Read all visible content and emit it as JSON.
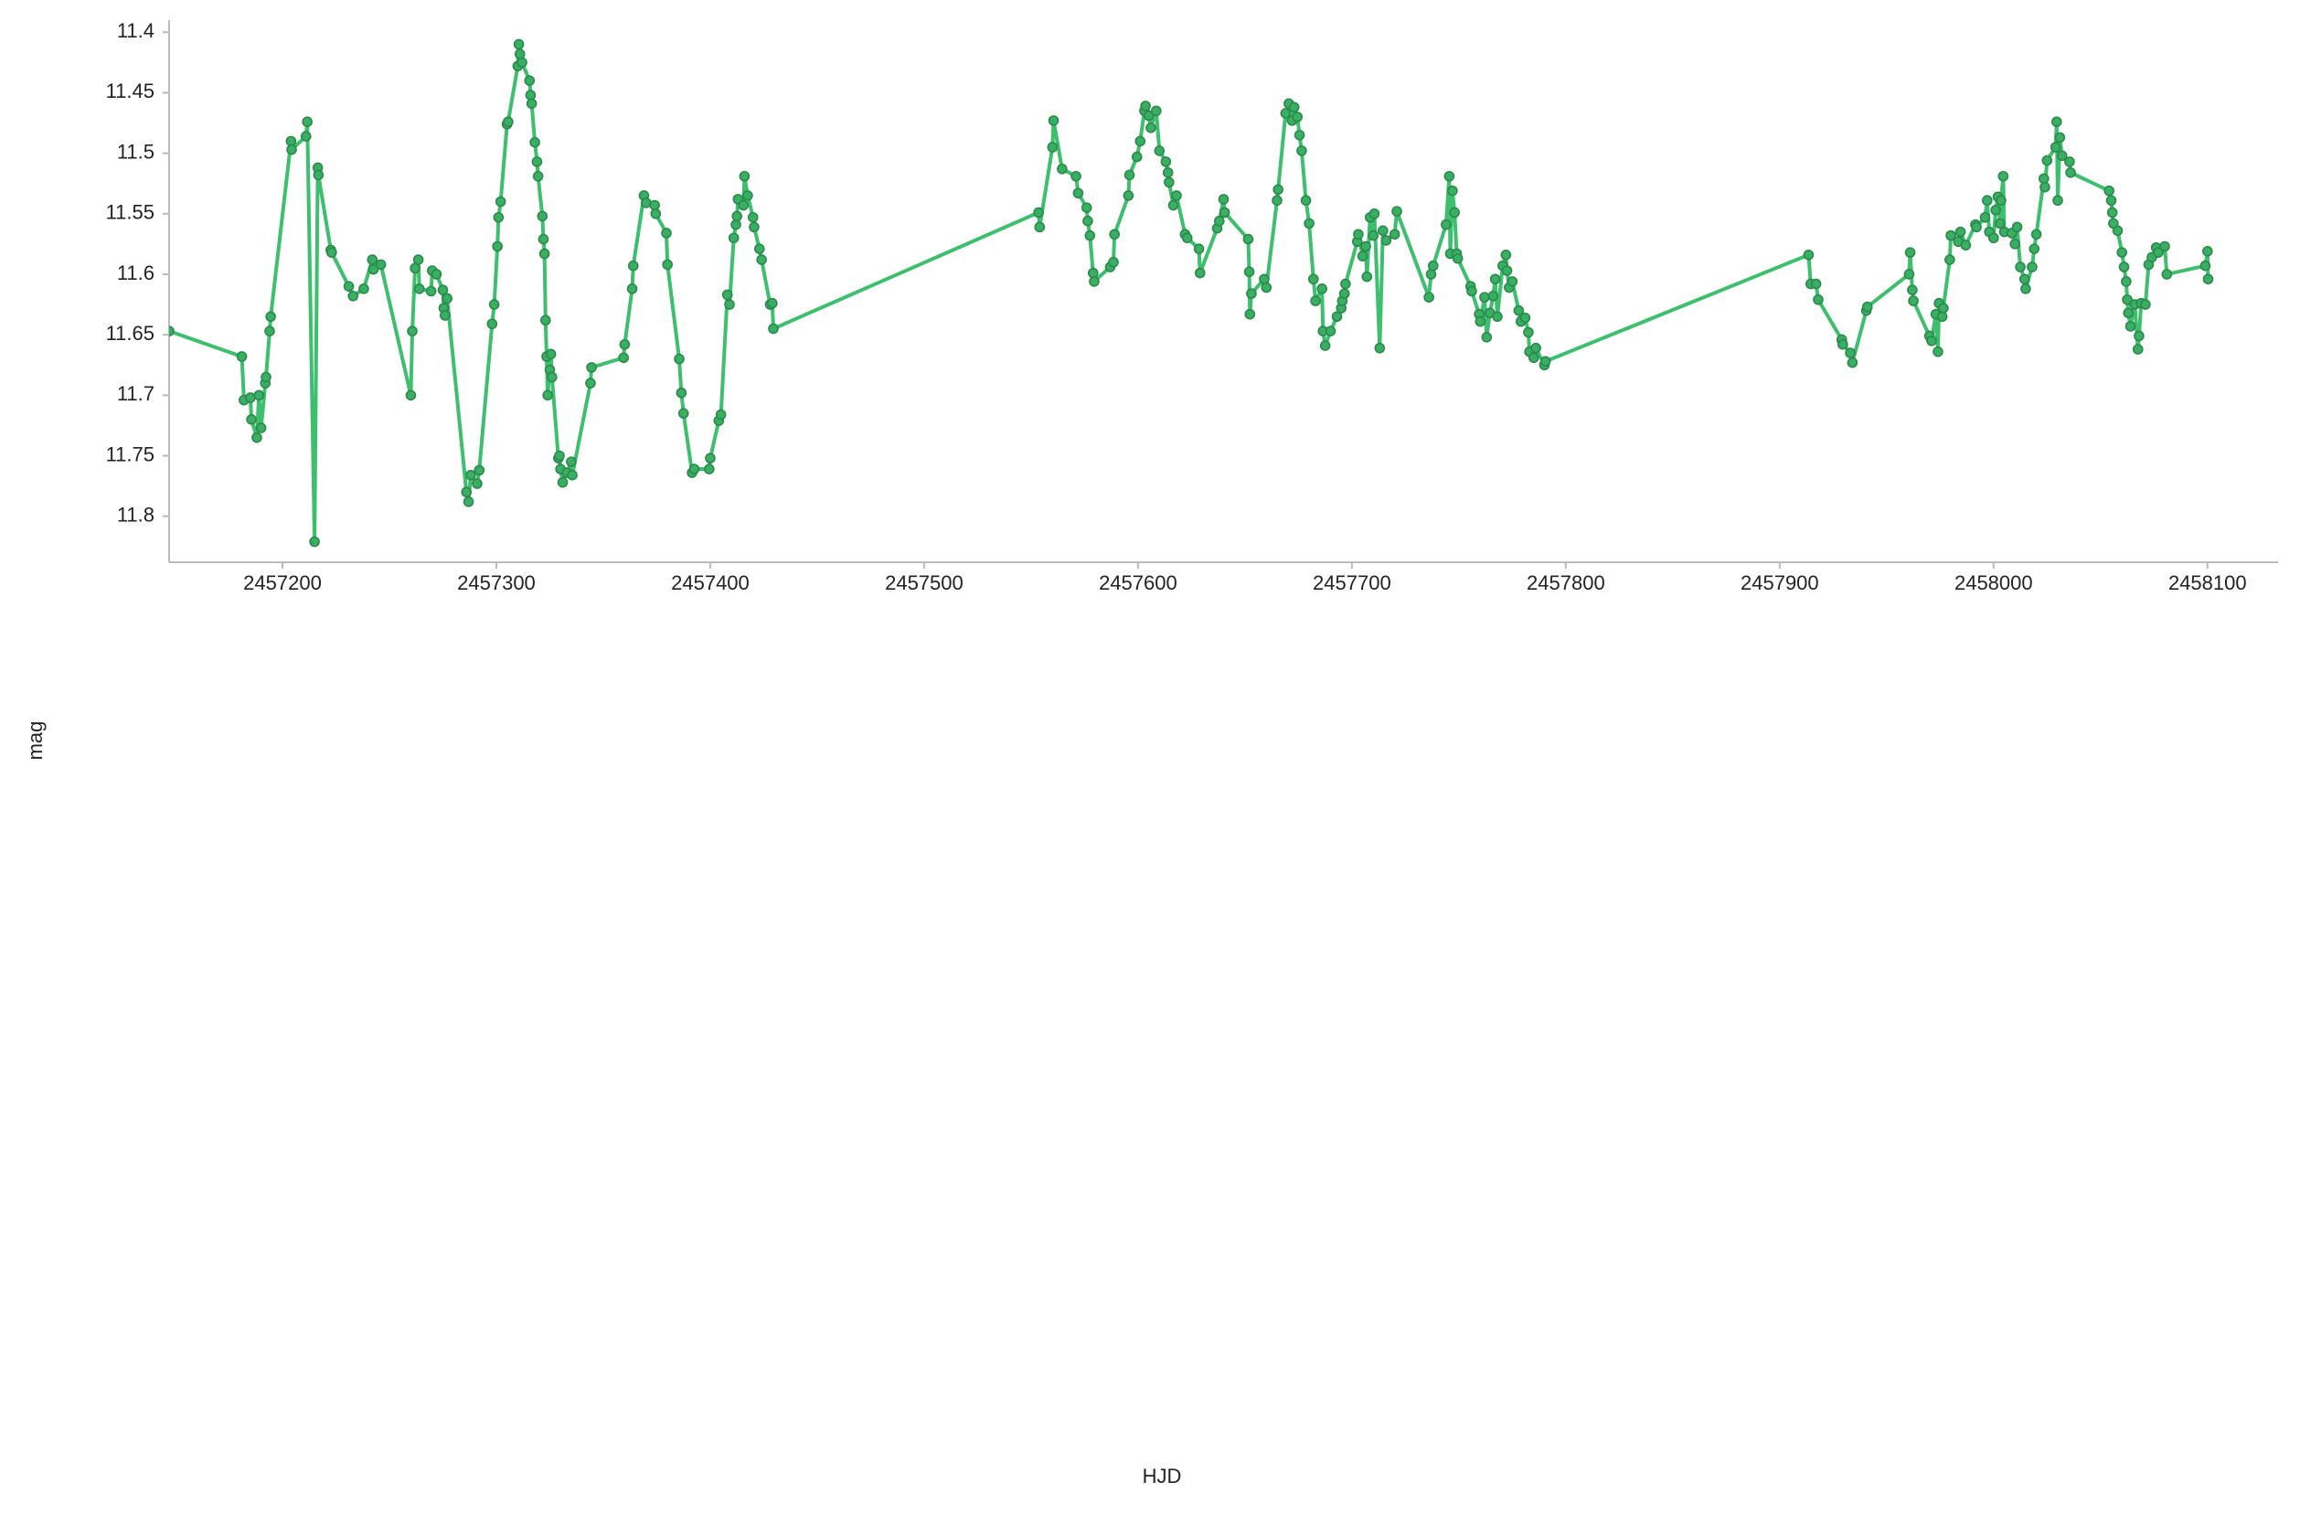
{
  "chart_data": {
    "type": "line",
    "x_label": "HJD",
    "y_label": "mag",
    "color": "#3dbf6e",
    "marker_color": "#3aae63",
    "marker_edge_color": "#2a8a4c",
    "markers": true,
    "y_inverted": true,
    "xlim": [
      2457147,
      2458133
    ],
    "ylim": [
      11.39,
      11.838
    ],
    "xticks": [
      2457200,
      2457300,
      2457400,
      2457500,
      2457600,
      2457700,
      2457800,
      2457900,
      2458000,
      2458100
    ],
    "yticks": [
      11.4,
      11.45,
      11.5,
      11.55,
      11.6,
      11.65,
      11.7,
      11.75,
      11.8
    ],
    "x": [
      2457147,
      2457181,
      2457182,
      2457185,
      2457185.5,
      2457188,
      2457189,
      2457190,
      2457192,
      2457192.3,
      2457194,
      2457194.5,
      2457204,
      2457204.3,
      2457211,
      2457211.6,
      2457215,
      2457216.5,
      2457216.8,
      2457222.6,
      2457223,
      2457231,
      2457233,
      2457238,
      2457242,
      2457242.5,
      2457246,
      2457260,
      2457260.7,
      2457262,
      2457263.5,
      2457264,
      2457269.5,
      2457270,
      2457272,
      2457275,
      2457275.4,
      2457276,
      2457277,
      2457286,
      2457287,
      2457288,
      2457291,
      2457292,
      2457298,
      2457299,
      2457300.5,
      2457301,
      2457302,
      2457305,
      2457305.5,
      2457310,
      2457310.5,
      2457311,
      2457312,
      2457315.5,
      2457316,
      2457316.5,
      2457318,
      2457319,
      2457319.5,
      2457321.5,
      2457322,
      2457322.5,
      2457323,
      2457323.5,
      2457324,
      2457325,
      2457325.5,
      2457326,
      2457329,
      2457329.5,
      2457330,
      2457331,
      2457333,
      2457335,
      2457335.5,
      2457344,
      2457344.5,
      2457359.5,
      2457360,
      2457363.5,
      2457364,
      2457369,
      2457370,
      2457374,
      2457374.5,
      2457379.5,
      2457380,
      2457385.5,
      2457386.5,
      2457387.5,
      2457391.5,
      2457392.5,
      2457399.5,
      2457400,
      2457404,
      2457405,
      2457408,
      2457409,
      2457411,
      2457412,
      2457412.5,
      2457413,
      2457415.5,
      2457416,
      2457417.5,
      2457420,
      2457420.5,
      2457423,
      2457424,
      2457428,
      2457429,
      2457429.5,
      2457553.5,
      2457554,
      2457560,
      2457560.5,
      2457564.5,
      2457571,
      2457572,
      2457576,
      2457576.5,
      2457577.5,
      2457579,
      2457579.5,
      2457587,
      2457588.5,
      2457589,
      2457595.5,
      2457596,
      2457599.5,
      2457601,
      2457603,
      2457603.5,
      2457605,
      2457606,
      2457608.5,
      2457610,
      2457613,
      2457614,
      2457614.5,
      2457616.5,
      2457618,
      2457622,
      2457623,
      2457628.5,
      2457629,
      2457637,
      2457638,
      2457640,
      2457640.5,
      2457651.5,
      2457652,
      2457652.3,
      2457653,
      2457659,
      2457660,
      2457665,
      2457665.5,
      2457669,
      2457670.5,
      2457672,
      2457673,
      2457674.5,
      2457675.5,
      2457676.5,
      2457678.5,
      2457680,
      2457682,
      2457683,
      2457686,
      2457686.5,
      2457687.5,
      2457690,
      2457693,
      2457695,
      2457695.5,
      2457696.5,
      2457697,
      2457702.5,
      2457703,
      2457705,
      2457706.5,
      2457707,
      2457708.5,
      2457710,
      2457710.5,
      2457713,
      2457714.5,
      2457716,
      2457720,
      2457721,
      2457736,
      2457737,
      2457738,
      2457744,
      2457745.5,
      2457746,
      2457747,
      2457748,
      2457749,
      2457749.5,
      2457755.5,
      2457756,
      2457759.5,
      2457760,
      2457762,
      2457763,
      2457764.5,
      2457766,
      2457767,
      2457768,
      2457770.5,
      2457772,
      2457772.5,
      2457773.5,
      2457775,
      2457778,
      2457779,
      2457781,
      2457782.5,
      2457783,
      2457785,
      2457786,
      2457790,
      2457790.5,
      2457913.5,
      2457914.5,
      2457917,
      2457918,
      2457929,
      2457929.5,
      2457933,
      2457934,
      2457940.5,
      2457941,
      2457960.5,
      2457961,
      2457962,
      2457962.5,
      2457970,
      2457971,
      2457973,
      2457974,
      2457974.5,
      2457976,
      2457976.5,
      2457979.5,
      2457980,
      2457983.5,
      2457984.5,
      2457987,
      2457991.5,
      2457992,
      2457996,
      2457997,
      2457998,
      2458000,
      2458001,
      2458002,
      2458003,
      2458003.5,
      2458004.5,
      2458005,
      2458008.5,
      2458010,
      2458011,
      2458012.5,
      2458014.5,
      2458015,
      2458018,
      2458019,
      2458020,
      2458023.5,
      2458024,
      2458025,
      2458029,
      2458029.5,
      2458030,
      2458031,
      2458032,
      2458035.5,
      2458036,
      2458054,
      2458055,
      2458055.5,
      2458056,
      2458058,
      2458060,
      2458061,
      2458062,
      2458062.5,
      2458063,
      2458064,
      2458066,
      2458067.5,
      2458068,
      2458069,
      2458071,
      2458072.5,
      2458074,
      2458076,
      2458077,
      2458080,
      2458081,
      2458099,
      2458100,
      2458100.3
    ],
    "values": [
      11.647,
      11.668,
      11.704,
      11.702,
      11.72,
      11.735,
      11.7,
      11.727,
      11.69,
      11.685,
      11.647,
      11.635,
      11.49,
      11.497,
      11.486,
      11.474,
      11.821,
      11.512,
      11.518,
      11.58,
      11.582,
      11.61,
      11.618,
      11.612,
      11.588,
      11.596,
      11.592,
      11.7,
      11.647,
      11.595,
      11.588,
      11.612,
      11.614,
      11.597,
      11.6,
      11.613,
      11.628,
      11.634,
      11.62,
      11.78,
      11.788,
      11.766,
      11.773,
      11.762,
      11.641,
      11.625,
      11.577,
      11.553,
      11.54,
      11.476,
      11.474,
      11.428,
      11.41,
      11.418,
      11.425,
      11.44,
      11.452,
      11.459,
      11.491,
      11.507,
      11.519,
      11.552,
      11.571,
      11.583,
      11.638,
      11.668,
      11.7,
      11.679,
      11.666,
      11.685,
      11.752,
      11.75,
      11.761,
      11.772,
      11.764,
      11.755,
      11.766,
      11.69,
      11.677,
      11.669,
      11.658,
      11.612,
      11.593,
      11.535,
      11.541,
      11.543,
      11.55,
      11.566,
      11.592,
      11.67,
      11.698,
      11.715,
      11.764,
      11.761,
      11.761,
      11.752,
      11.721,
      11.716,
      11.617,
      11.625,
      11.57,
      11.559,
      11.552,
      11.538,
      11.543,
      11.519,
      11.535,
      11.553,
      11.561,
      11.579,
      11.588,
      11.625,
      11.624,
      11.645,
      11.549,
      11.561,
      11.495,
      11.473,
      11.513,
      11.519,
      11.533,
      11.545,
      11.556,
      11.568,
      11.599,
      11.606,
      11.594,
      11.59,
      11.567,
      11.535,
      11.518,
      11.503,
      11.49,
      11.465,
      11.461,
      11.469,
      11.479,
      11.465,
      11.498,
      11.507,
      11.516,
      11.524,
      11.543,
      11.535,
      11.567,
      11.57,
      11.579,
      11.599,
      11.562,
      11.556,
      11.538,
      11.549,
      11.571,
      11.598,
      11.633,
      11.616,
      11.604,
      11.611,
      11.539,
      11.53,
      11.467,
      11.459,
      11.473,
      11.462,
      11.47,
      11.485,
      11.498,
      11.539,
      11.558,
      11.604,
      11.622,
      11.612,
      11.647,
      11.659,
      11.647,
      11.635,
      11.628,
      11.622,
      11.616,
      11.608,
      11.573,
      11.567,
      11.585,
      11.577,
      11.602,
      11.553,
      11.568,
      11.55,
      11.661,
      11.564,
      11.572,
      11.567,
      11.548,
      11.619,
      11.6,
      11.593,
      11.559,
      11.519,
      11.583,
      11.531,
      11.549,
      11.583,
      11.587,
      11.61,
      11.614,
      11.633,
      11.639,
      11.619,
      11.652,
      11.632,
      11.618,
      11.604,
      11.635,
      11.593,
      11.584,
      11.597,
      11.611,
      11.606,
      11.63,
      11.639,
      11.636,
      11.648,
      11.664,
      11.669,
      11.661,
      11.675,
      11.672,
      11.584,
      11.608,
      11.608,
      11.621,
      11.654,
      11.658,
      11.665,
      11.673,
      11.63,
      11.627,
      11.6,
      11.582,
      11.613,
      11.622,
      11.651,
      11.655,
      11.633,
      11.664,
      11.624,
      11.635,
      11.628,
      11.588,
      11.568,
      11.573,
      11.565,
      11.576,
      11.559,
      11.561,
      11.553,
      11.539,
      11.565,
      11.57,
      11.547,
      11.536,
      11.558,
      11.539,
      11.519,
      11.565,
      11.566,
      11.575,
      11.561,
      11.594,
      11.604,
      11.612,
      11.594,
      11.579,
      11.567,
      11.521,
      11.528,
      11.506,
      11.495,
      11.474,
      11.539,
      11.487,
      11.502,
      11.507,
      11.516,
      11.531,
      11.539,
      11.549,
      11.558,
      11.564,
      11.582,
      11.594,
      11.606,
      11.621,
      11.632,
      11.643,
      11.625,
      11.662,
      11.651,
      11.624,
      11.625,
      11.592,
      11.586,
      11.578,
      11.582,
      11.577,
      11.6,
      11.593,
      11.581,
      11.604
    ]
  }
}
